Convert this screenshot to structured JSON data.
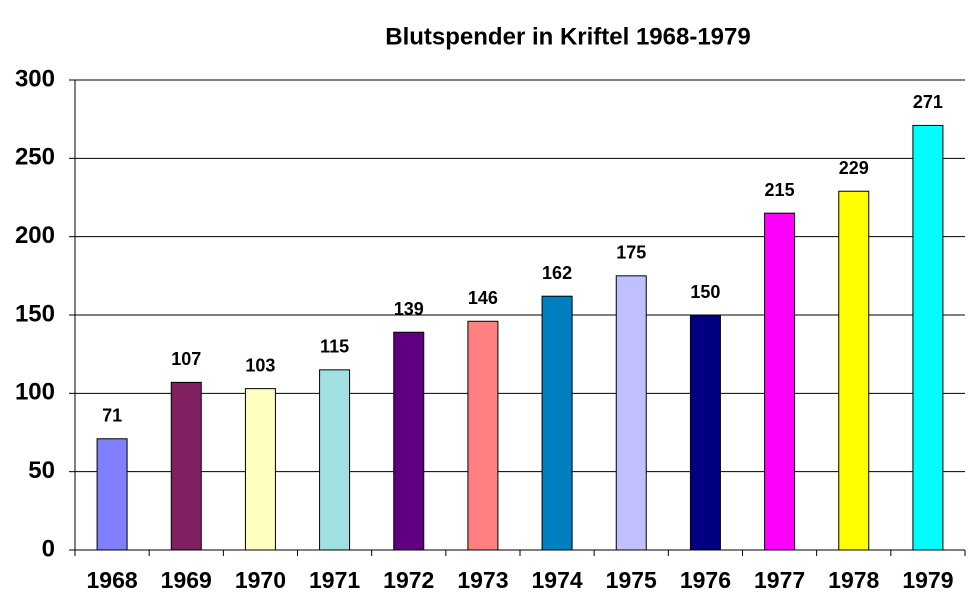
{
  "chart_data": {
    "type": "bar",
    "title": "Blutspender in Kriftel 1968-1979",
    "categories": [
      "1968",
      "1969",
      "1970",
      "1971",
      "1972",
      "1973",
      "1974",
      "1975",
      "1976",
      "1977",
      "1978",
      "1979"
    ],
    "values": [
      71,
      107,
      103,
      115,
      139,
      146,
      162,
      175,
      150,
      215,
      229,
      271
    ],
    "colors": [
      "#8080ff",
      "#802060",
      "#ffffc0",
      "#a0e0e0",
      "#600080",
      "#ff8080",
      "#0080c0",
      "#c0c0ff",
      "#000080",
      "#ff00ff",
      "#ffff00",
      "#00ffff"
    ],
    "ylim": [
      0,
      300
    ],
    "yticks": [
      0,
      50,
      100,
      150,
      200,
      250,
      300
    ],
    "grid": true
  }
}
